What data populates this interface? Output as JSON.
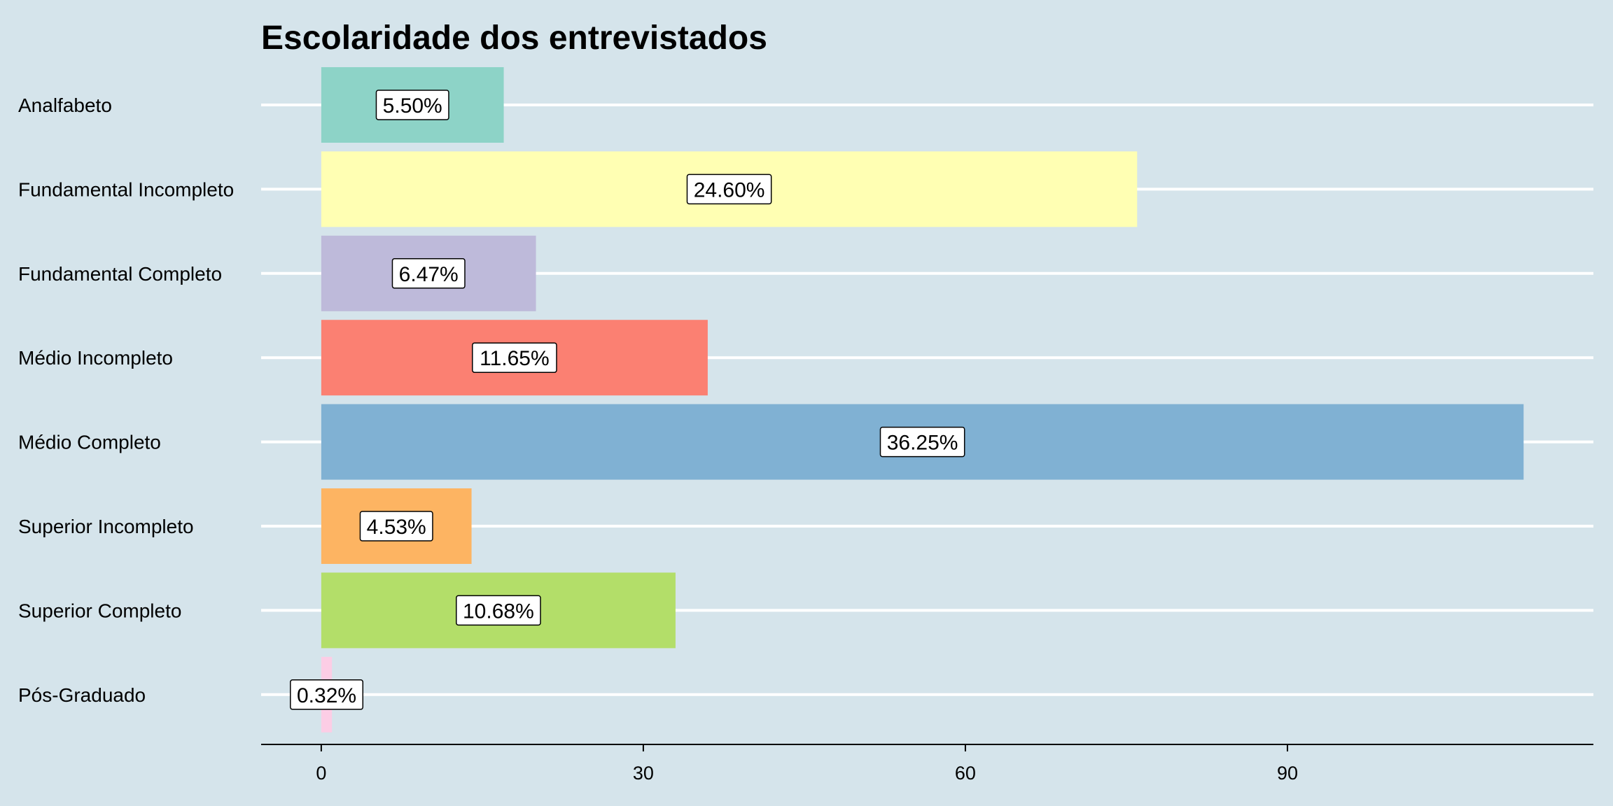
{
  "chart_data": {
    "type": "bar",
    "orientation": "horizontal",
    "title": "Escolaridade dos entrevistados",
    "xlabel": "",
    "ylabel": "",
    "xlim": [
      -5.6,
      118.5
    ],
    "x_ticks": [
      0,
      30,
      60,
      90
    ],
    "grid": "horizontal-major",
    "legend": "none",
    "categories": [
      "Analfabeto",
      "Fundamental Incompleto",
      "Fundamental Completo",
      "Médio Incompleto",
      "Médio Completo",
      "Superior Incompleto",
      "Superior Completo",
      "Pós-Graduado"
    ],
    "values": [
      17,
      76,
      20,
      36,
      112,
      14,
      33,
      1
    ],
    "labels": [
      "5.50%",
      "24.60%",
      "6.47%",
      "11.65%",
      "36.25%",
      "4.53%",
      "10.68%",
      "0.32%"
    ],
    "colors": [
      "#8dd3c7",
      "#ffffb3",
      "#bebada",
      "#fb8072",
      "#80b1d3",
      "#fdb462",
      "#b3de69",
      "#fccde5"
    ]
  },
  "colors": {
    "background": "#d5e4eb",
    "grid": "#ffffff",
    "axis": "#000000"
  }
}
